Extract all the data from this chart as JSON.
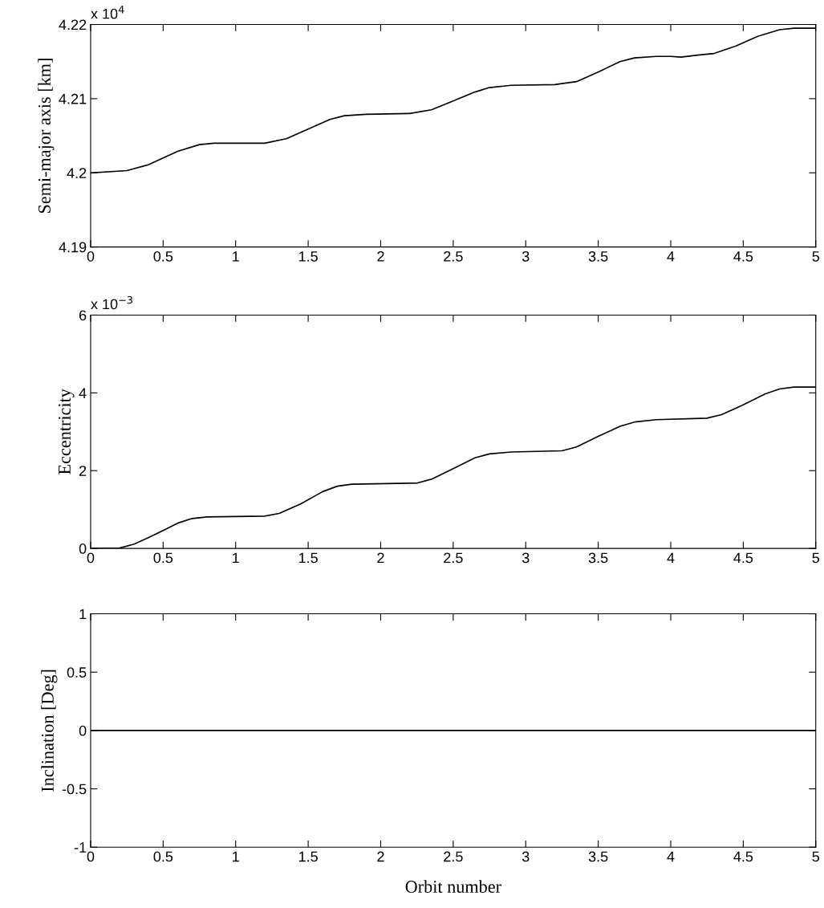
{
  "chart_data": [
    {
      "type": "line",
      "ylabel": "Semi-major axis [km]",
      "annotations": [
        "x 10$^{4}$"
      ],
      "xlim": [
        0,
        5
      ],
      "xticks": [
        0,
        0.5,
        1,
        1.5,
        2,
        2.5,
        3,
        3.5,
        4,
        4.5,
        5
      ],
      "ylim": [
        4.19,
        4.22
      ],
      "yticks": [
        4.19,
        4.2,
        4.21,
        4.22
      ],
      "grid": false,
      "legend": false,
      "x": [
        0,
        0.25,
        0.4,
        0.5,
        0.6,
        0.75,
        0.85,
        1.0,
        1.2,
        1.35,
        1.5,
        1.65,
        1.75,
        1.9,
        2.2,
        2.35,
        2.5,
        2.65,
        2.75,
        2.9,
        3.2,
        3.35,
        3.5,
        3.65,
        3.75,
        3.9,
        4.0,
        4.07,
        4.2,
        4.3,
        4.45,
        4.6,
        4.75,
        4.85,
        5.0
      ],
      "series": [
        {
          "color": "#000000",
          "values": [
            4.2,
            4.2003,
            4.2011,
            4.202,
            4.2029,
            4.2038,
            4.204,
            4.204,
            4.204,
            4.2046,
            4.2059,
            4.2072,
            4.2077,
            4.2079,
            4.208,
            4.2085,
            4.2097,
            4.2109,
            4.2115,
            4.2118,
            4.2119,
            4.2123,
            4.2136,
            4.215,
            4.2155,
            4.2157,
            4.2157,
            4.2156,
            4.2159,
            4.2161,
            4.2171,
            4.2184,
            4.2193,
            4.2195,
            4.2195
          ]
        }
      ]
    },
    {
      "type": "line",
      "ylabel": "Eccentricity",
      "annotations": [
        "x 10$^{−3}$"
      ],
      "xlim": [
        0,
        5
      ],
      "xticks": [
        0,
        0.5,
        1,
        1.5,
        2,
        2.5,
        3,
        3.5,
        4,
        4.5,
        5
      ],
      "ylim": [
        0,
        6
      ],
      "yticks": [
        0,
        2,
        4,
        6
      ],
      "grid": false,
      "legend": false,
      "x": [
        0,
        0.2,
        0.3,
        0.4,
        0.5,
        0.6,
        0.7,
        0.8,
        1.2,
        1.3,
        1.45,
        1.6,
        1.7,
        1.8,
        2.25,
        2.35,
        2.5,
        2.65,
        2.75,
        2.9,
        3.25,
        3.35,
        3.5,
        3.65,
        3.75,
        3.9,
        4.25,
        4.35,
        4.5,
        4.65,
        4.75,
        4.85,
        5.0
      ],
      "series": [
        {
          "color": "#000000",
          "values": [
            0,
            0.01,
            0.11,
            0.28,
            0.46,
            0.65,
            0.77,
            0.81,
            0.83,
            0.9,
            1.15,
            1.46,
            1.6,
            1.65,
            1.68,
            1.78,
            2.05,
            2.33,
            2.43,
            2.48,
            2.51,
            2.61,
            2.88,
            3.14,
            3.25,
            3.31,
            3.35,
            3.44,
            3.69,
            3.97,
            4.1,
            4.15,
            4.15
          ]
        }
      ]
    },
    {
      "type": "line",
      "xlabel": "Orbit number",
      "ylabel": "Inclination [Deg]",
      "xlim": [
        0,
        5
      ],
      "xticks": [
        0,
        0.5,
        1,
        1.5,
        2,
        2.5,
        3,
        3.5,
        4,
        4.5,
        5
      ],
      "ylim": [
        -1,
        1
      ],
      "yticks": [
        -1,
        -0.5,
        0,
        0.5,
        1
      ],
      "grid": false,
      "legend": false,
      "x": [
        0,
        5
      ],
      "series": [
        {
          "color": "#000000",
          "values": [
            0,
            0
          ]
        }
      ]
    }
  ]
}
